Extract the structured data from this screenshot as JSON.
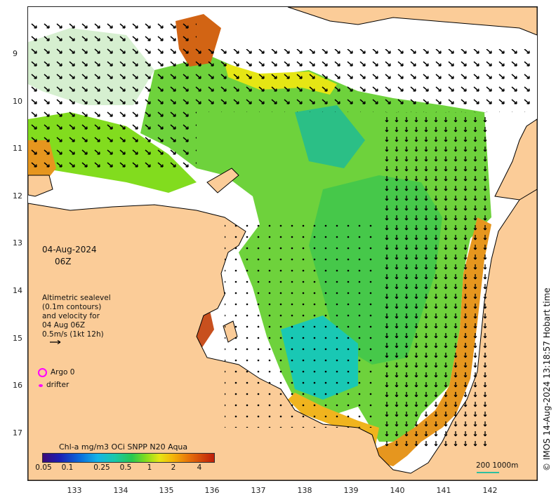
{
  "map": {
    "date": "04-Aug-2024",
    "time": "06Z",
    "legend": {
      "line1": "Altimetric sealevel",
      "line2": "(0.1m contours)",
      "line3": "and velocity for",
      "line4": "04 Aug 06Z",
      "line5": "0.5m/s (1kt 12h)"
    },
    "argo_label": "Argo 0",
    "drifter_label": "drifter",
    "colorbar": {
      "title": "Chl-a mg/m3 OCi SNPP N20 Aqua",
      "ticks": [
        "0.05",
        "0.1",
        "0.25",
        "0.5",
        "1",
        "2",
        "4"
      ]
    },
    "scale": "200  1000m",
    "credit": "© IMOS 14-Aug-2024 13:18:57 Hobart time",
    "lat_ticks": [
      "9",
      "10",
      "11",
      "12",
      "13",
      "14",
      "15",
      "16",
      "17"
    ],
    "lon_ticks": [
      "133",
      "134",
      "135",
      "136",
      "137",
      "138",
      "139",
      "140",
      "141",
      "142"
    ],
    "colors": {
      "land": "#fbcc98",
      "high_chl": "#c8501e",
      "mid_chl": "#6ed23c",
      "low_chl": "#19c8b4"
    }
  }
}
